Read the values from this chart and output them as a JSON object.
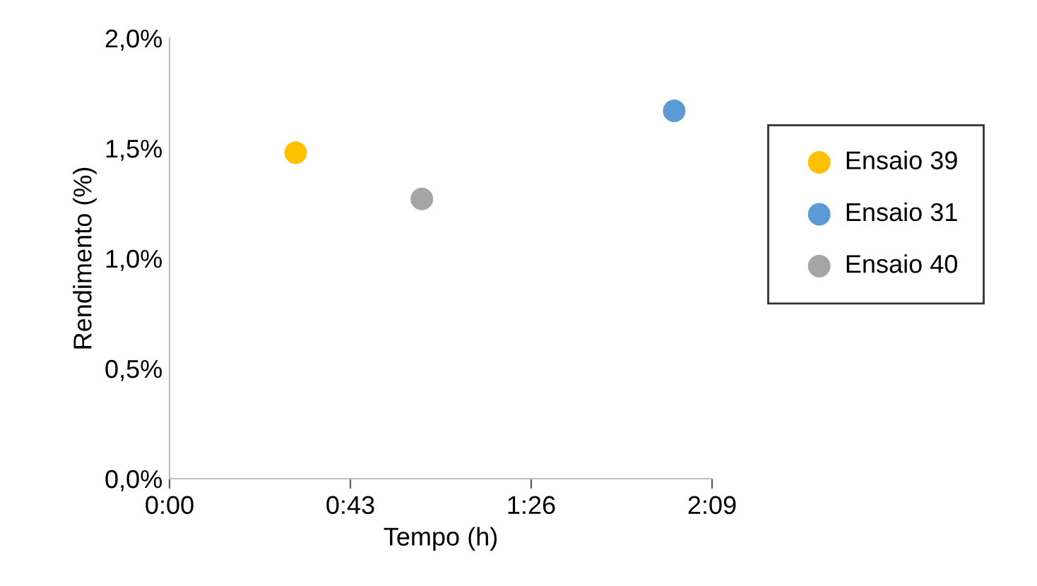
{
  "chart_data": {
    "type": "scatter",
    "xlabel": "Tempo (h)",
    "ylabel": "Rendimento (%)",
    "xlim": [
      0,
      2.15
    ],
    "xticks": [
      {
        "value": 0,
        "label": "0:00"
      },
      {
        "value": 0.7167,
        "label": "0:43"
      },
      {
        "value": 1.4333,
        "label": "1:26"
      },
      {
        "value": 2.15,
        "label": "2:09"
      }
    ],
    "ylim": [
      0,
      2.0
    ],
    "yticks": [
      {
        "value": 0,
        "label": "0,0%"
      },
      {
        "value": 0.5,
        "label": "0,5%"
      },
      {
        "value": 1.0,
        "label": "1,0%"
      },
      {
        "value": 1.5,
        "label": "1,5%"
      },
      {
        "value": 2.0,
        "label": "2,0%"
      }
    ],
    "series": [
      {
        "name": "Ensaio 39",
        "color": "#ffc000",
        "x": [
          0.5
        ],
        "values": [
          1.48
        ]
      },
      {
        "name": "Ensaio 31",
        "color": "#5b9bd5",
        "x": [
          2.0
        ],
        "values": [
          1.67
        ]
      },
      {
        "name": "Ensaio 40",
        "color": "#a5a5a5",
        "x": [
          1.0
        ],
        "values": [
          1.27
        ]
      }
    ],
    "marker": "circle",
    "grid": false,
    "legend": "right"
  }
}
